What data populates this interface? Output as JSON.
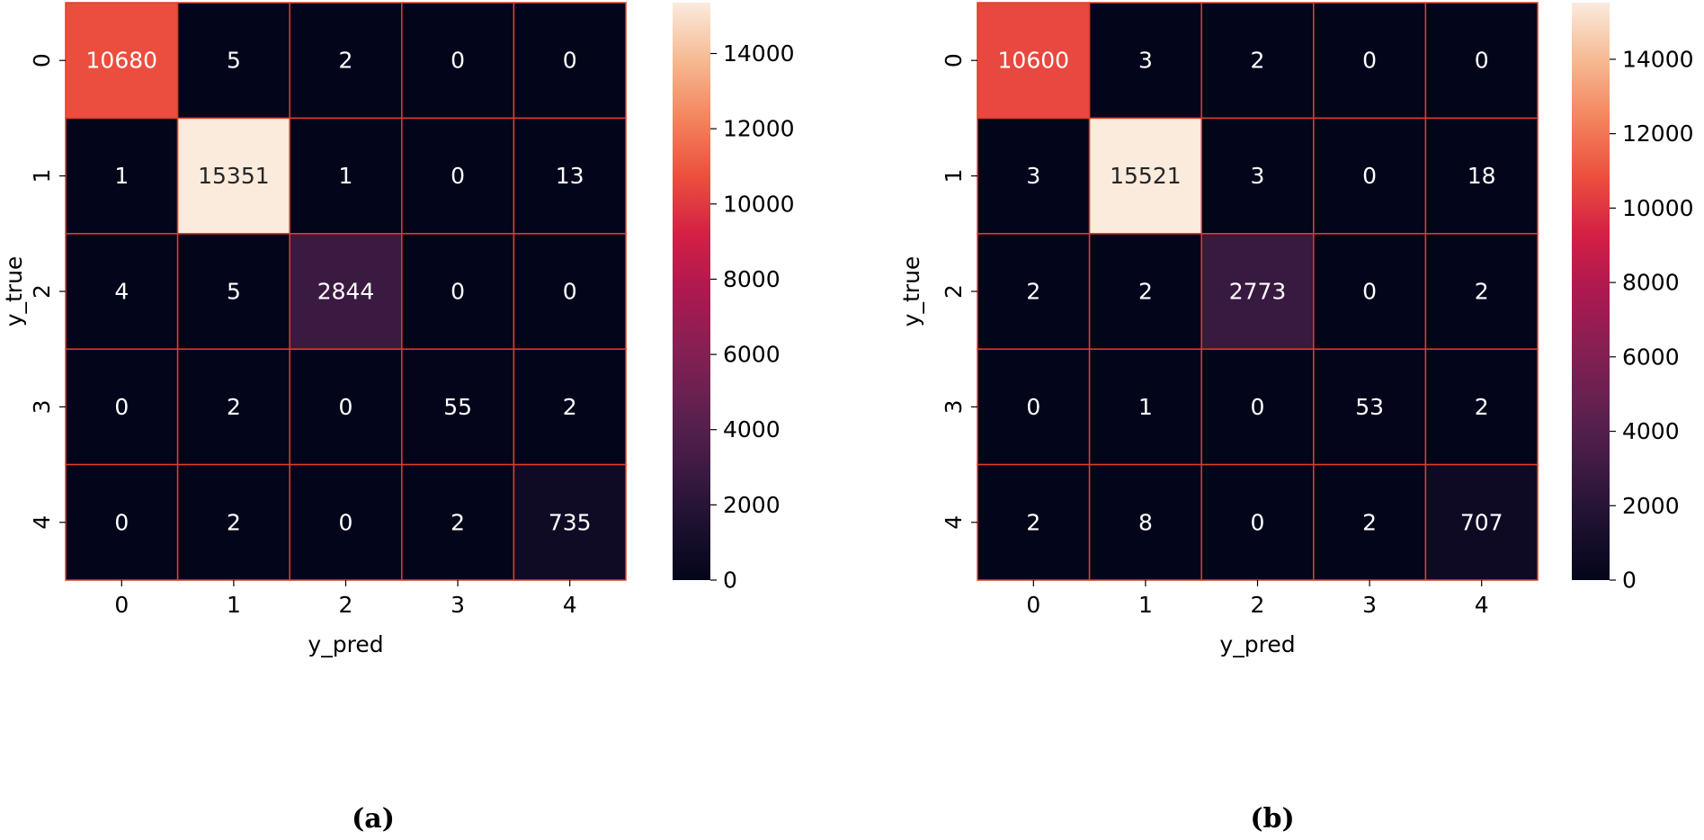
{
  "chart_data": [
    {
      "type": "heatmap",
      "panel_label": "(a)",
      "xlabel": "y_pred",
      "ylabel": "y_true",
      "x_categories": [
        "0",
        "1",
        "2",
        "3",
        "4"
      ],
      "y_categories": [
        "0",
        "1",
        "2",
        "3",
        "4"
      ],
      "matrix": [
        [
          10680,
          5,
          2,
          0,
          0
        ],
        [
          1,
          15351,
          1,
          0,
          13
        ],
        [
          4,
          5,
          2844,
          0,
          0
        ],
        [
          0,
          2,
          0,
          55,
          2
        ],
        [
          0,
          2,
          0,
          2,
          735
        ]
      ],
      "colorbar": {
        "min": 0,
        "max": 15351,
        "ticks": [
          "0",
          "2000",
          "4000",
          "6000",
          "8000",
          "10000",
          "12000",
          "14000"
        ]
      }
    },
    {
      "type": "heatmap",
      "panel_label": "(b)",
      "xlabel": "y_pred",
      "ylabel": "y_true",
      "x_categories": [
        "0",
        "1",
        "2",
        "3",
        "4"
      ],
      "y_categories": [
        "0",
        "1",
        "2",
        "3",
        "4"
      ],
      "matrix": [
        [
          10600,
          3,
          2,
          0,
          0
        ],
        [
          3,
          15521,
          3,
          0,
          18
        ],
        [
          2,
          2,
          2773,
          0,
          2
        ],
        [
          0,
          1,
          0,
          53,
          2
        ],
        [
          2,
          8,
          0,
          2,
          707
        ]
      ],
      "colorbar": {
        "min": 0,
        "max": 15521,
        "ticks": [
          "0",
          "2000",
          "4000",
          "6000",
          "8000",
          "10000",
          "12000",
          "14000"
        ]
      }
    }
  ],
  "colors": {
    "gridline": "#e23c2c",
    "text_light": "#ffffff",
    "text_dark": "#262626"
  }
}
